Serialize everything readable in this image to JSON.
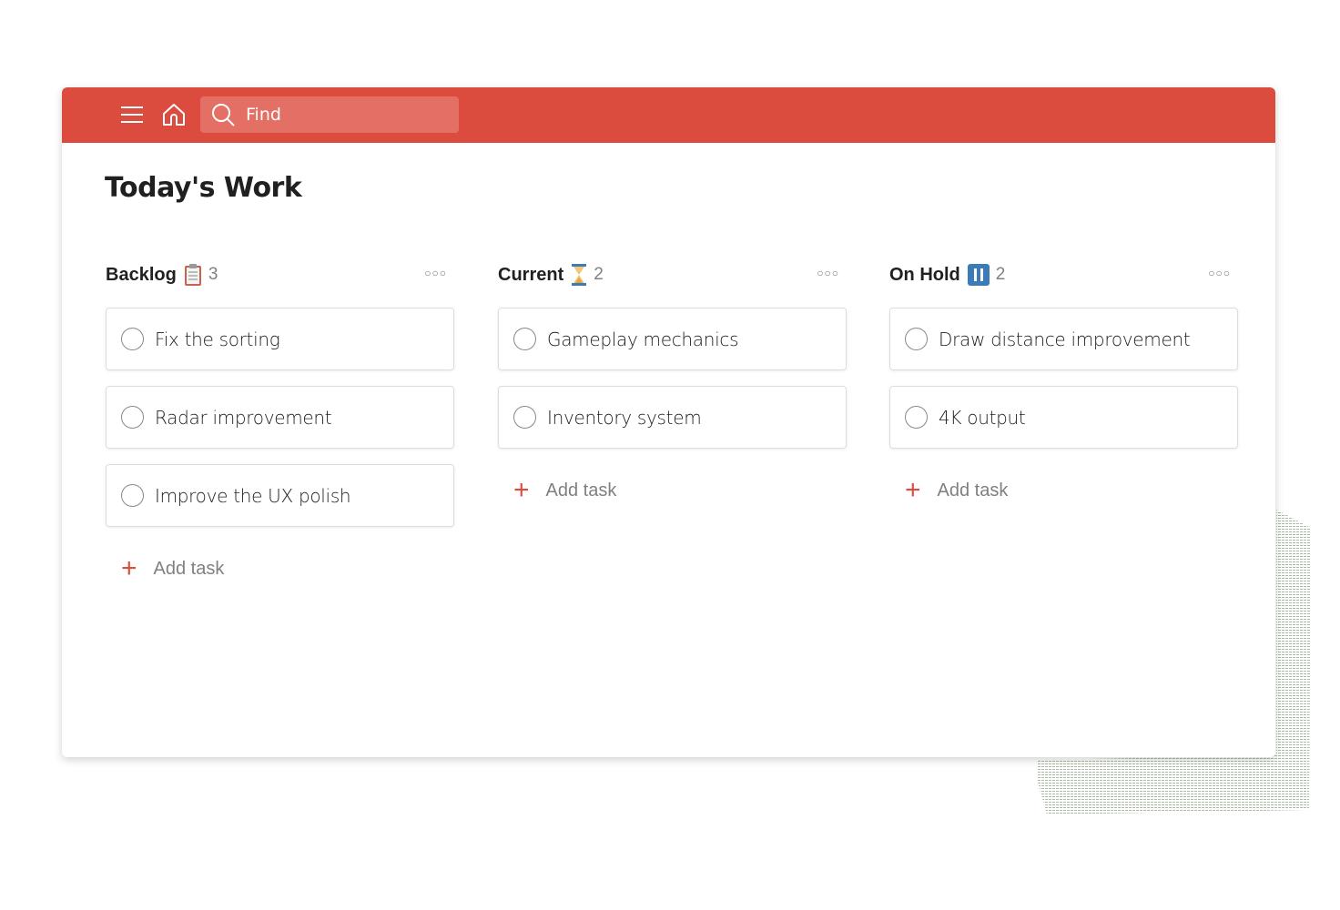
{
  "topbar": {
    "color": "#db4c3f",
    "search_placeholder": "Find",
    "menu_icon": "hamburger-icon",
    "home_icon": "home-icon",
    "search_icon": "search-icon"
  },
  "page": {
    "title": "Today's Work"
  },
  "add_task_label": "Add task",
  "columns": [
    {
      "name": "Backlog",
      "icon": "clipboard-icon",
      "count": "3",
      "tasks": [
        "Fix the sorting",
        "Radar improvement",
        "Improve the UX polish"
      ]
    },
    {
      "name": "Current",
      "icon": "hourglass-icon",
      "count": "2",
      "tasks": [
        "Gameplay mechanics",
        "Inventory system"
      ]
    },
    {
      "name": "On Hold",
      "icon": "pause-icon",
      "count": "2",
      "tasks": [
        "Draw distance improvement",
        "4K output"
      ]
    }
  ]
}
